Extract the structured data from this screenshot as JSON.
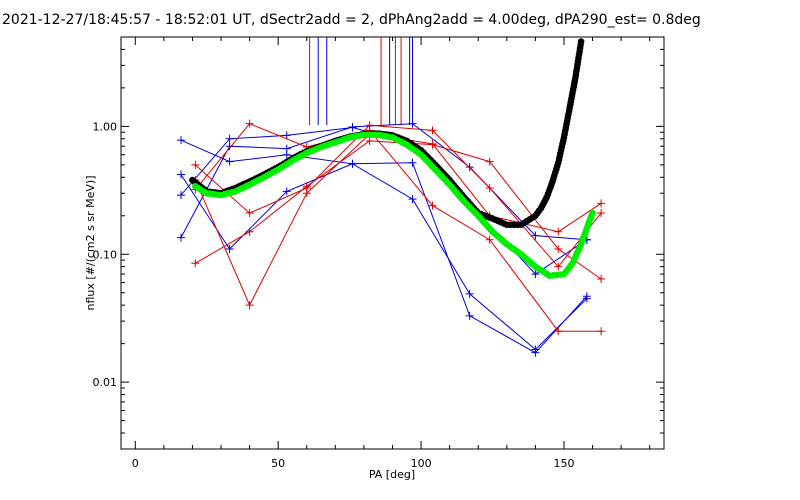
{
  "chart_data": {
    "type": "scatter",
    "title": "2021-12-27/18:45:57 - 18:52:01 UT, dSectr2add = 2, dPhAng2add = 4.00deg, dPA290_est=   0.8deg",
    "xlabel": "PA [deg]",
    "ylabel": "nflux [#/(cm2 s sr MeV)]",
    "xlim": [
      -5,
      185
    ],
    "ylim": [
      0.003,
      5
    ],
    "yscale": "log",
    "xticks": [
      0,
      50,
      100,
      150
    ],
    "xtick_labels": [
      "0",
      "50",
      "100",
      "150"
    ],
    "yticks": [
      0.01,
      0.1,
      1
    ],
    "ytick_labels": [
      "0.01",
      "0.10",
      "1.00"
    ],
    "grid": false,
    "colors": {
      "red": "#dd0000",
      "blue": "#0000dd",
      "black": "#000000",
      "green": "#00ee00"
    },
    "vlines": [
      {
        "x": 61,
        "color": "#dd0000"
      },
      {
        "x": 64,
        "color": "#0000dd"
      },
      {
        "x": 67,
        "color": "#0000dd"
      },
      {
        "x": 86,
        "color": "#dd0000"
      },
      {
        "x": 89,
        "color": "#0000dd"
      },
      {
        "x": 91,
        "color": "#dd0000"
      },
      {
        "x": 93,
        "color": "#dd0000"
      },
      {
        "x": 96,
        "color": "#0000dd"
      },
      {
        "x": 97,
        "color": "#0000dd"
      }
    ],
    "series": [
      {
        "color": "#0000dd",
        "x": [
          16,
          33,
          53,
          76,
          97,
          117,
          140,
          158
        ],
        "y": [
          0.78,
          0.53,
          0.6,
          0.51,
          0.27,
          0.049,
          0.018,
          0.045
        ]
      },
      {
        "color": "#0000dd",
        "x": [
          16,
          33,
          53,
          76,
          97,
          117,
          140,
          158
        ],
        "y": [
          0.42,
          0.11,
          0.31,
          0.51,
          0.52,
          0.033,
          0.017,
          0.047
        ]
      },
      {
        "color": "#0000dd",
        "x": [
          16,
          33,
          53,
          76,
          97,
          117,
          140,
          158
        ],
        "y": [
          0.29,
          0.8,
          0.85,
          0.98,
          0.73,
          0.25,
          0.07,
          0.13
        ]
      },
      {
        "color": "#0000dd",
        "x": [
          16,
          33,
          53,
          76,
          97,
          117,
          140,
          158
        ],
        "y": [
          0.135,
          0.7,
          0.67,
          0.99,
          1.05,
          0.48,
          0.14,
          0.13
        ]
      },
      {
        "color": "#dd0000",
        "x": [
          21,
          40,
          60,
          82,
          104,
          124,
          148,
          163
        ],
        "y": [
          0.085,
          0.15,
          0.34,
          0.77,
          0.72,
          0.53,
          0.11,
          0.064
        ]
      },
      {
        "color": "#dd0000",
        "x": [
          21,
          40,
          60,
          82,
          104,
          124,
          148,
          163
        ],
        "y": [
          0.5,
          0.21,
          0.33,
          1.02,
          0.93,
          0.33,
          0.08,
          0.21
        ]
      },
      {
        "color": "#dd0000",
        "x": [
          21,
          40,
          60,
          82,
          104,
          124,
          148,
          163
        ],
        "y": [
          0.32,
          1.05,
          0.69,
          0.93,
          0.24,
          0.13,
          0.025,
          0.025
        ]
      },
      {
        "color": "#dd0000",
        "x": [
          21,
          40,
          60,
          82,
          104,
          124,
          148,
          163
        ],
        "y": [
          0.38,
          0.04,
          0.3,
          0.87,
          0.73,
          0.2,
          0.15,
          0.25
        ]
      }
    ],
    "fits": [
      {
        "color": "#000000",
        "x": [
          20,
          25,
          30,
          35,
          40,
          45,
          50,
          55,
          60,
          65,
          70,
          75,
          80,
          85,
          90,
          95,
          100,
          105,
          110,
          115,
          120,
          125,
          130,
          135,
          140,
          142,
          144,
          146,
          148,
          150,
          152,
          154,
          156
        ],
        "y": [
          0.38,
          0.31,
          0.3,
          0.33,
          0.37,
          0.42,
          0.48,
          0.56,
          0.64,
          0.7,
          0.77,
          0.83,
          0.87,
          0.88,
          0.85,
          0.77,
          0.65,
          0.5,
          0.38,
          0.28,
          0.21,
          0.19,
          0.17,
          0.17,
          0.2,
          0.23,
          0.28,
          0.37,
          0.52,
          0.82,
          1.4,
          2.4,
          4.6
        ]
      },
      {
        "color": "#00ee00",
        "x": [
          21,
          25,
          30,
          35,
          40,
          45,
          50,
          55,
          60,
          65,
          70,
          75,
          80,
          85,
          90,
          95,
          100,
          105,
          110,
          115,
          120,
          125,
          130,
          135,
          140,
          145,
          150,
          153,
          156,
          158,
          160
        ],
        "y": [
          0.34,
          0.3,
          0.29,
          0.31,
          0.35,
          0.4,
          0.46,
          0.54,
          0.62,
          0.69,
          0.75,
          0.82,
          0.86,
          0.86,
          0.82,
          0.72,
          0.6,
          0.46,
          0.35,
          0.26,
          0.2,
          0.15,
          0.12,
          0.1,
          0.08,
          0.068,
          0.07,
          0.085,
          0.12,
          0.16,
          0.21
        ]
      }
    ]
  }
}
